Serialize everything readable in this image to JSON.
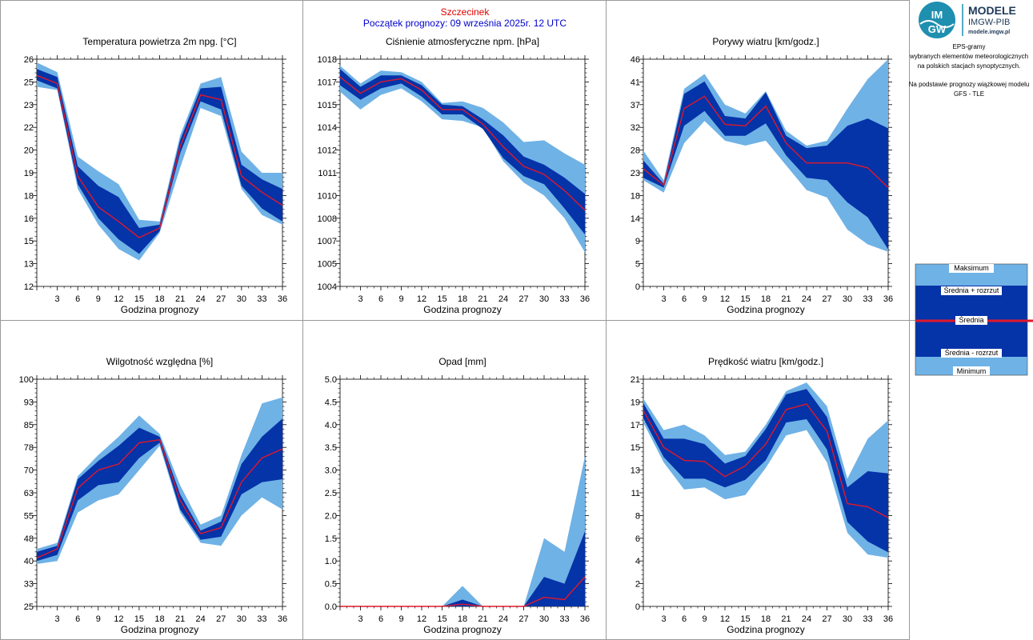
{
  "header": {
    "station": "Szczecinek",
    "forecast_start": "Początek prognozy: 09 września 2025r. 12 UTC"
  },
  "logo": {
    "badge_text_top": "IM",
    "badge_text_bottom": "GW",
    "title": "MODELE",
    "subtitle": "IMGW-PIB",
    "url": "modele.imgw.pl"
  },
  "side_info": {
    "line1": "EPS-gramy",
    "line2": "wybranych elementów meteorologicznych",
    "line3": "na polskich stacjach  synoptycznych.",
    "line4": "Na podstawie prognozy wiązkowej modelu",
    "line5": "GFS - TLE"
  },
  "legend": {
    "max": "Maksimum",
    "mean_plus": "Średnia + rozrzut",
    "mean": "Średnia",
    "mean_minus": "Średnia - rozrzut",
    "min": "Minimum"
  },
  "colors": {
    "outer_band": "#6fb2e6",
    "inner_band": "#0533a8",
    "mean_line": "#e0182a"
  },
  "chart_data": [
    {
      "type": "area",
      "title": "Temperatura powietrza 2m npg. [°C]",
      "xlabel": "Godzina prognozy",
      "x": [
        0,
        3,
        6,
        9,
        12,
        15,
        18,
        21,
        24,
        27,
        30,
        33,
        36
      ],
      "xticks": [
        "3",
        "6",
        "9",
        "12",
        "15",
        "18",
        "21",
        "24",
        "27",
        "30",
        "33",
        "36"
      ],
      "ylim": [
        12,
        26
      ],
      "yticks": [
        "12",
        "13",
        "15",
        "16",
        "18",
        "19",
        "20",
        "22",
        "23",
        "25",
        "26"
      ],
      "series": [
        {
          "name": "Maksimum",
          "values": [
            25.8,
            25.2,
            20.0,
            19.1,
            18.3,
            16.1,
            16.0,
            21.3,
            24.5,
            24.9,
            20.3,
            19.0,
            19.0
          ]
        },
        {
          "name": "Średnia + rozrzut",
          "values": [
            25.4,
            24.9,
            19.4,
            18.2,
            17.5,
            15.6,
            15.8,
            21.0,
            24.2,
            24.3,
            19.5,
            18.6,
            18.0
          ]
        },
        {
          "name": "Średnia",
          "values": [
            25.0,
            24.5,
            18.8,
            16.9,
            16.0,
            15.0,
            15.6,
            20.6,
            23.8,
            23.5,
            18.8,
            17.8,
            17.0
          ]
        },
        {
          "name": "Średnia - rozrzut",
          "values": [
            24.7,
            24.2,
            18.3,
            16.2,
            14.9,
            14.0,
            15.4,
            20.2,
            23.4,
            22.9,
            18.2,
            16.8,
            16.0
          ]
        },
        {
          "name": "Minimum",
          "values": [
            24.3,
            24.1,
            18.0,
            15.8,
            14.3,
            13.6,
            15.3,
            19.3,
            23.0,
            22.5,
            18.0,
            16.4,
            15.8
          ]
        }
      ]
    },
    {
      "type": "area",
      "title": "Ciśnienie atmosferyczne npm. [hPa]",
      "xlabel": "Godzina prognozy",
      "x": [
        0,
        3,
        6,
        9,
        12,
        15,
        18,
        21,
        24,
        27,
        30,
        33,
        36
      ],
      "xticks": [
        "3",
        "6",
        "9",
        "12",
        "15",
        "18",
        "21",
        "24",
        "27",
        "30",
        "33",
        "36"
      ],
      "ylim": [
        1004,
        1018
      ],
      "yticks": [
        "1004",
        "1005",
        "1007",
        "1008",
        "1010",
        "1011",
        "1012",
        "1014",
        "1015",
        "1017",
        "1018"
      ],
      "series": [
        {
          "name": "Maksimum",
          "values": [
            1017.6,
            1016.5,
            1017.3,
            1017.2,
            1016.6,
            1015.3,
            1015.4,
            1015.0,
            1014.1,
            1012.9,
            1013.0,
            1012.2,
            1011.5
          ]
        },
        {
          "name": "Średnia + rozrzut",
          "values": [
            1017.4,
            1016.3,
            1017.0,
            1017.0,
            1016.4,
            1015.2,
            1015.1,
            1014.3,
            1013.3,
            1012.0,
            1011.5,
            1010.7,
            1009.7
          ]
        },
        {
          "name": "Średnia",
          "values": [
            1016.9,
            1015.9,
            1016.6,
            1016.8,
            1016.1,
            1014.9,
            1014.9,
            1014.0,
            1012.6,
            1011.4,
            1010.9,
            1009.9,
            1008.7
          ]
        },
        {
          "name": "Średnia - rozrzut",
          "values": [
            1016.4,
            1015.5,
            1016.2,
            1016.5,
            1015.7,
            1014.6,
            1014.6,
            1013.7,
            1011.9,
            1010.8,
            1010.3,
            1008.8,
            1007.2
          ]
        },
        {
          "name": "Minimum",
          "values": [
            1016.0,
            1014.9,
            1015.8,
            1016.2,
            1015.4,
            1014.3,
            1014.2,
            1013.8,
            1011.7,
            1010.4,
            1009.6,
            1008.2,
            1006.1
          ]
        }
      ]
    },
    {
      "type": "area",
      "title": "Porywy wiatru [km/godz.]",
      "xlabel": "Godzina prognozy",
      "x": [
        0,
        3,
        6,
        9,
        12,
        15,
        18,
        21,
        24,
        27,
        30,
        33,
        36
      ],
      "xticks": [
        "3",
        "6",
        "9",
        "12",
        "15",
        "18",
        "21",
        "24",
        "27",
        "30",
        "33",
        "36"
      ],
      "ylim": [
        0,
        46
      ],
      "yticks": [
        "0",
        "5",
        "9",
        "14",
        "18",
        "23",
        "28",
        "32",
        "37",
        "41",
        "46"
      ],
      "series": [
        {
          "name": "Maksimum",
          "values": [
            27.5,
            21.5,
            40.0,
            43.0,
            36.8,
            35.0,
            39.5,
            31.5,
            28.5,
            29.5,
            36.0,
            42.0,
            46.0
          ]
        },
        {
          "name": "Średnia + rozrzut",
          "values": [
            25.5,
            20.8,
            39.0,
            41.5,
            34.5,
            34.0,
            39.3,
            30.5,
            28.0,
            28.5,
            32.5,
            34.0,
            32.0
          ]
        },
        {
          "name": "Średnia",
          "values": [
            23.8,
            20.5,
            36.0,
            38.5,
            32.8,
            32.5,
            36.5,
            29.0,
            25.0,
            25.0,
            25.0,
            24.0,
            20.0
          ]
        },
        {
          "name": "Średnia - rozrzut",
          "values": [
            22.0,
            20.0,
            32.5,
            35.5,
            30.5,
            30.5,
            33.0,
            26.5,
            22.0,
            21.5,
            17.0,
            14.0,
            7.5
          ]
        },
        {
          "name": "Minimum",
          "values": [
            21.5,
            19.0,
            29.0,
            33.5,
            29.5,
            28.5,
            29.5,
            24.5,
            19.5,
            18.0,
            11.5,
            8.5,
            7.0
          ]
        }
      ]
    },
    {
      "type": "area",
      "title": "Wilgotność względna [%]",
      "xlabel": "Godzina prognozy",
      "x": [
        0,
        3,
        6,
        9,
        12,
        15,
        18,
        21,
        24,
        27,
        30,
        33,
        36
      ],
      "xticks": [
        "3",
        "6",
        "9",
        "12",
        "15",
        "18",
        "21",
        "24",
        "27",
        "30",
        "33",
        "36"
      ],
      "ylim": [
        25,
        100
      ],
      "yticks": [
        "25",
        "33",
        "40",
        "48",
        "55",
        "63",
        "70",
        "78",
        "85",
        "93",
        "100"
      ],
      "series": [
        {
          "name": "Maksimum",
          "values": [
            44,
            46,
            68,
            75,
            81,
            88,
            82,
            65,
            52,
            55,
            75,
            92,
            94
          ]
        },
        {
          "name": "Średnia + rozrzut",
          "values": [
            43,
            45,
            67,
            73,
            78,
            84,
            81,
            62,
            50,
            53,
            72,
            81,
            87
          ]
        },
        {
          "name": "Średnia",
          "values": [
            41,
            44,
            64,
            70,
            72,
            79,
            80,
            60,
            49,
            51,
            66,
            74,
            77
          ]
        },
        {
          "name": "Średnia - rozrzut",
          "values": [
            40,
            42,
            60,
            65,
            66,
            74,
            79,
            57,
            47,
            48,
            62,
            66,
            67
          ]
        },
        {
          "name": "Minimum",
          "values": [
            39,
            40,
            56,
            60,
            62,
            70,
            78,
            56,
            46,
            45,
            55,
            61,
            57
          ]
        }
      ]
    },
    {
      "type": "area",
      "title": "Opad [mm]",
      "xlabel": "Godzina prognozy",
      "x": [
        0,
        3,
        6,
        9,
        12,
        15,
        18,
        21,
        24,
        27,
        30,
        33,
        36
      ],
      "xticks": [
        "3",
        "6",
        "9",
        "12",
        "15",
        "18",
        "21",
        "24",
        "27",
        "30",
        "33",
        "36"
      ],
      "ylim": [
        0,
        5
      ],
      "yticks": [
        "0.0",
        "0.5",
        "1.0",
        "1.5",
        "2.0",
        "2.5",
        "3.0",
        "3.5",
        "4.0",
        "4.5",
        "5.0"
      ],
      "series": [
        {
          "name": "Maksimum",
          "values": [
            0,
            0,
            0,
            0,
            0,
            0,
            0.45,
            0,
            0,
            0,
            1.5,
            1.2,
            3.3
          ]
        },
        {
          "name": "Średnia + rozrzut",
          "values": [
            0,
            0,
            0,
            0,
            0,
            0,
            0.15,
            0,
            0,
            0,
            0.65,
            0.5,
            1.65
          ]
        },
        {
          "name": "Średnia",
          "values": [
            0,
            0,
            0,
            0,
            0,
            0,
            0.05,
            0,
            0,
            0,
            0.2,
            0.15,
            0.65
          ]
        },
        {
          "name": "Średnia - rozrzut",
          "values": [
            0,
            0,
            0,
            0,
            0,
            0,
            0,
            0,
            0,
            0,
            0,
            0,
            0
          ]
        },
        {
          "name": "Minimum",
          "values": [
            0,
            0,
            0,
            0,
            0,
            0,
            0,
            0,
            0,
            0,
            0,
            0,
            0
          ]
        }
      ]
    },
    {
      "type": "area",
      "title": "Prędkość wiatru [km/godz.]",
      "xlabel": "Godzina prognozy",
      "x": [
        0,
        3,
        6,
        9,
        12,
        15,
        18,
        21,
        24,
        27,
        30,
        33,
        36
      ],
      "xticks": [
        "3",
        "6",
        "9",
        "12",
        "15",
        "18",
        "21",
        "24",
        "27",
        "30",
        "33",
        "36"
      ],
      "ylim": [
        0,
        21
      ],
      "yticks": [
        "0",
        "2",
        "4",
        "6",
        "8",
        "11",
        "13",
        "15",
        "17",
        "19",
        "21"
      ],
      "series": [
        {
          "name": "Maksimum",
          "values": [
            19.2,
            16.3,
            16.8,
            15.8,
            14.0,
            14.3,
            16.8,
            19.9,
            20.7,
            18.5,
            11.8,
            15.5,
            17.2
          ]
        },
        {
          "name": "Średnia + rozrzut",
          "values": [
            18.8,
            15.5,
            15.5,
            15.0,
            13.2,
            13.9,
            16.4,
            19.6,
            20.1,
            17.5,
            11.0,
            12.5,
            12.3
          ]
        },
        {
          "name": "Średnia",
          "values": [
            18.1,
            14.7,
            13.5,
            13.4,
            12.0,
            13.0,
            15.0,
            18.2,
            18.7,
            16.2,
            9.5,
            9.2,
            8.2
          ]
        },
        {
          "name": "Średnia - rozrzut",
          "values": [
            17.4,
            13.8,
            11.8,
            11.8,
            11.0,
            11.7,
            13.5,
            17.0,
            17.3,
            14.5,
            7.8,
            6.0,
            5.0
          ]
        },
        {
          "name": "Minimum",
          "values": [
            17.0,
            13.3,
            10.8,
            11.0,
            9.9,
            10.3,
            12.8,
            15.8,
            16.3,
            13.3,
            6.8,
            4.8,
            4.5
          ]
        }
      ]
    }
  ]
}
